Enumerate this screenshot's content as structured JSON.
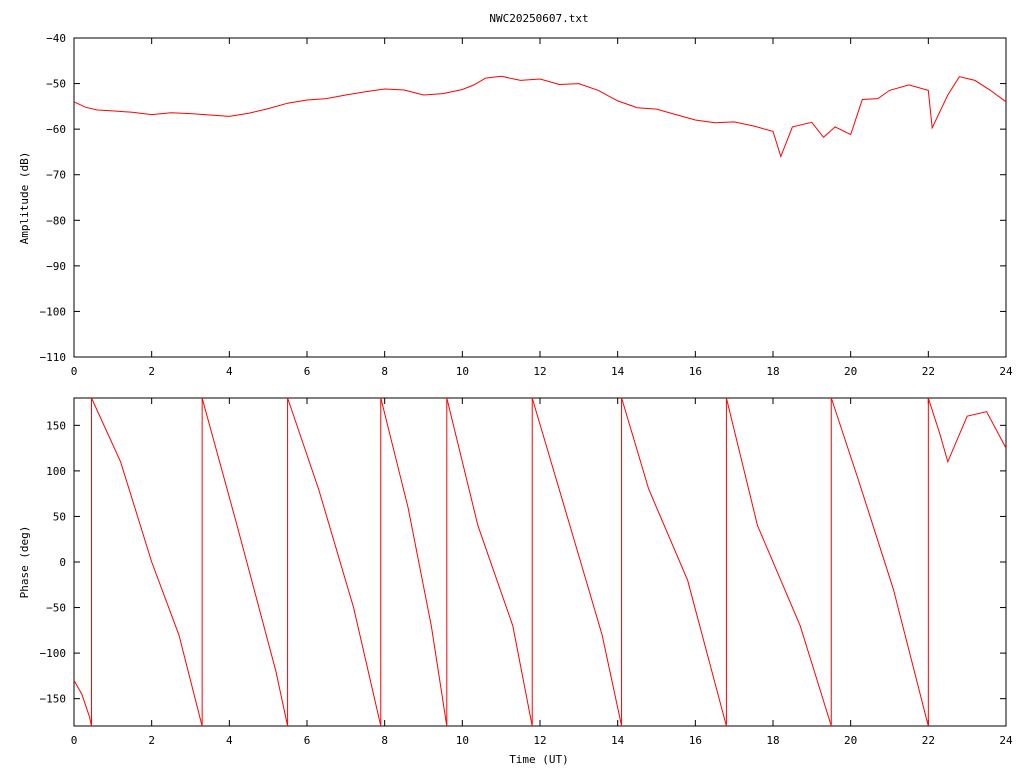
{
  "title": "NWC20250607.txt",
  "colors": {
    "series": "#ff0000",
    "axes": "#000000",
    "background": "#ffffff"
  },
  "chart_data": [
    {
      "type": "line",
      "ylabel": "Amplitude (dB)",
      "xlabel": "",
      "xlim": [
        0,
        24
      ],
      "ylim": [
        -110,
        -40
      ],
      "x_ticks": [
        0,
        2,
        4,
        6,
        8,
        10,
        12,
        14,
        16,
        18,
        20,
        22,
        24
      ],
      "y_ticks": [
        -110,
        -100,
        -90,
        -80,
        -70,
        -60,
        -50,
        -40
      ],
      "grid": false,
      "series": [
        {
          "x": [
            0,
            0.3,
            0.6,
            1,
            1.5,
            2,
            2.5,
            3,
            3.5,
            4,
            4.5,
            5,
            5.5,
            6,
            6.5,
            7,
            7.5,
            8,
            8.5,
            9,
            9.5,
            10,
            10.3,
            10.6,
            11,
            11.5,
            12,
            12.5,
            13,
            13.5,
            14,
            14.5,
            15,
            15.5,
            16,
            16.5,
            17,
            17.5,
            18,
            18.2,
            18.5,
            19,
            19.3,
            19.6,
            20,
            20.3,
            20.7,
            21,
            21.5,
            22,
            22.1,
            22.5,
            22.8,
            23.2,
            23.6,
            24
          ],
          "y": [
            -54,
            -55.2,
            -55.8,
            -56,
            -56.3,
            -56.8,
            -56.4,
            -56.6,
            -56.9,
            -57.2,
            -56.5,
            -55.5,
            -54.3,
            -53.6,
            -53.3,
            -52.5,
            -51.8,
            -51.2,
            -51.4,
            -52.5,
            -52.2,
            -51.3,
            -50.3,
            -48.8,
            -48.4,
            -49.3,
            -49,
            -50.2,
            -50,
            -51.5,
            -53.8,
            -55.3,
            -55.6,
            -56.8,
            -58,
            -58.6,
            -58.4,
            -59.3,
            -60.5,
            -66,
            -59.5,
            -58.5,
            -61.8,
            -59.5,
            -61.2,
            -53.5,
            -53.3,
            -51.5,
            -50.3,
            -51.5,
            -59.7,
            -52.5,
            -48.5,
            -49.3,
            -51.5,
            -54
          ]
        }
      ]
    },
    {
      "type": "line",
      "ylabel": "Phase (deg)",
      "xlabel": "Time (UT)",
      "xlim": [
        0,
        24
      ],
      "ylim": [
        -180,
        180
      ],
      "x_ticks": [
        0,
        2,
        4,
        6,
        8,
        10,
        12,
        14,
        16,
        18,
        20,
        22,
        24
      ],
      "y_ticks": [
        -150,
        -100,
        -50,
        0,
        50,
        100,
        150
      ],
      "grid": false,
      "segments": [
        {
          "x": [
            0,
            0.2,
            0.4,
            0.45
          ],
          "y": [
            -130,
            -145,
            -170,
            -180
          ]
        },
        {
          "x": [
            0.45,
            1.2,
            2,
            2.7,
            3.3
          ],
          "y": [
            180,
            110,
            0,
            -80,
            -180
          ]
        },
        {
          "x": [
            3.3,
            4.2,
            5.2,
            5.5
          ],
          "y": [
            180,
            40,
            -120,
            -180
          ]
        },
        {
          "x": [
            5.5,
            6.3,
            7.2,
            7.9
          ],
          "y": [
            180,
            80,
            -50,
            -180
          ]
        },
        {
          "x": [
            7.9,
            8.6,
            9.2,
            9.6
          ],
          "y": [
            180,
            60,
            -70,
            -180
          ]
        },
        {
          "x": [
            9.6,
            10.4,
            11.3,
            11.8
          ],
          "y": [
            180,
            40,
            -70,
            -180
          ]
        },
        {
          "x": [
            11.8,
            12.7,
            13.6,
            14.1
          ],
          "y": [
            180,
            50,
            -80,
            -180
          ]
        },
        {
          "x": [
            14.1,
            14.8,
            15.8,
            16.8
          ],
          "y": [
            180,
            80,
            -20,
            -180
          ]
        },
        {
          "x": [
            16.8,
            17.6,
            18.7,
            19.5
          ],
          "y": [
            180,
            40,
            -70,
            -180
          ]
        },
        {
          "x": [
            19.5,
            20.2,
            21.1,
            22
          ],
          "y": [
            180,
            90,
            -30,
            -180
          ]
        },
        {
          "x": [
            22,
            22.3,
            22.5,
            22.7,
            23,
            23.5,
            24
          ],
          "y": [
            180,
            140,
            110,
            130,
            160,
            165,
            125
          ]
        }
      ],
      "wrap_x": [
        0.45,
        3.3,
        5.5,
        7.9,
        9.6,
        11.8,
        14.1,
        16.8,
        19.5,
        22
      ]
    }
  ]
}
